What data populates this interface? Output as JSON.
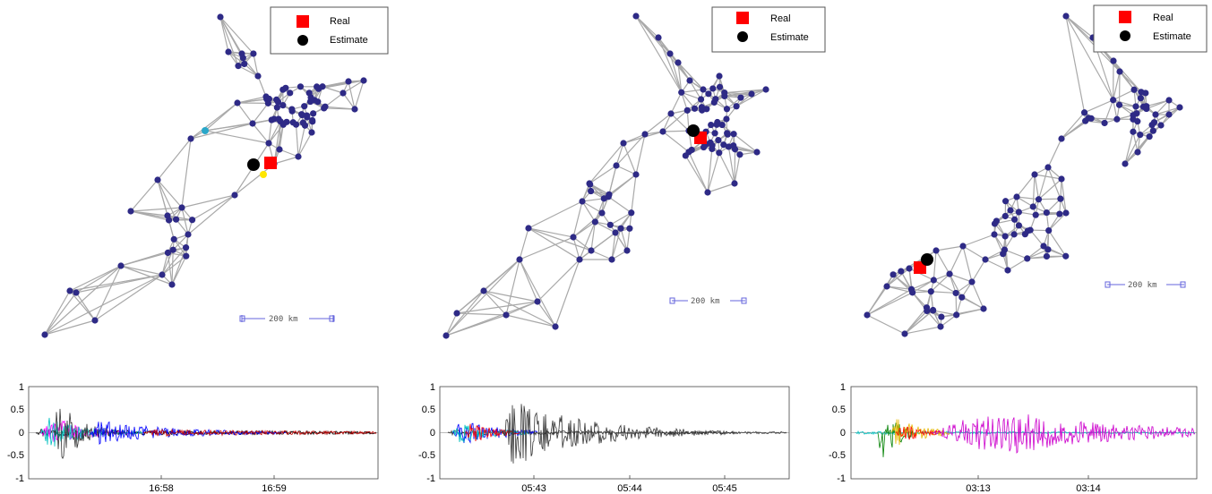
{
  "panels": [
    {
      "legend": {
        "real_label": "Real",
        "estimate_label": "Estimate"
      },
      "scale_label": "200  km",
      "waveform": {
        "yticks": [
          "1",
          "0.5",
          "0",
          "-0.5",
          "-1"
        ],
        "xticks": [
          "16:58",
          "16:59"
        ]
      }
    },
    {
      "legend": {
        "real_label": "Real",
        "estimate_label": "Estimate"
      },
      "scale_label": "200  km",
      "waveform": {
        "yticks": [
          "1",
          "0.5",
          "0",
          "-0.5",
          "-1"
        ],
        "xticks": [
          "05:43",
          "05:44",
          "05:45"
        ]
      }
    },
    {
      "legend": {
        "real_label": "Real",
        "estimate_label": "Estimate"
      },
      "scale_label": "200  km",
      "waveform": {
        "yticks": [
          "1",
          "0.5",
          "0",
          "-0.5",
          "-1"
        ],
        "xticks": [
          "03:13",
          "03:14"
        ]
      }
    }
  ],
  "colors": {
    "edge": "#a9a9a9",
    "node": "#2e2a86",
    "real_marker": "#ff0000",
    "estimate_marker": "#000000",
    "scale_bar": "#6464dc"
  }
}
